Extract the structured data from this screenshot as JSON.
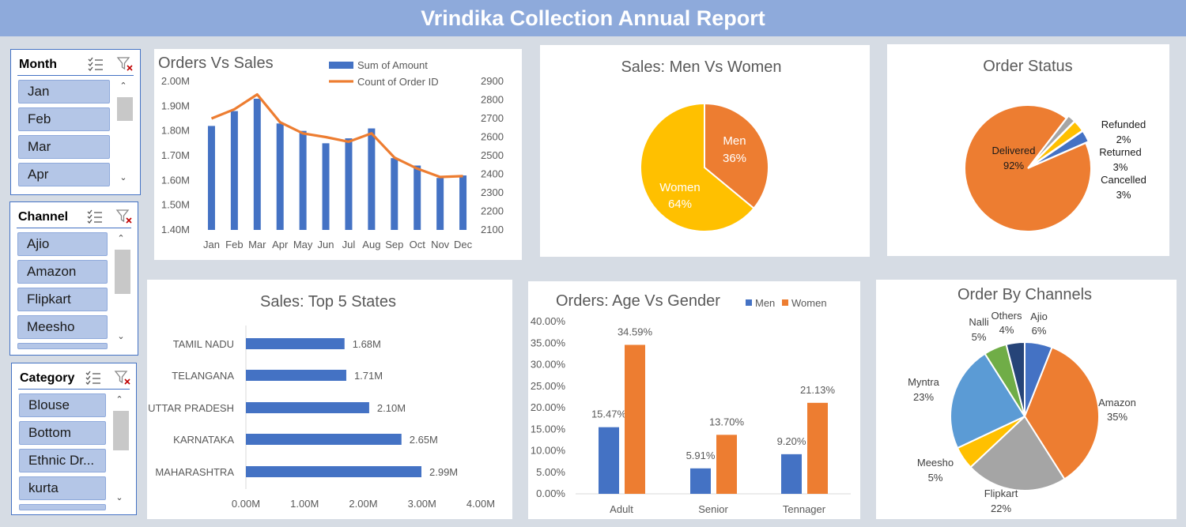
{
  "title": "Vrindika Collection Annual Report",
  "slicers": [
    {
      "name": "Month",
      "items": [
        "Jan",
        "Feb",
        "Mar",
        "Apr"
      ]
    },
    {
      "name": "Channel",
      "items": [
        "Ajio",
        "Amazon",
        "Flipkart",
        "Meesho"
      ]
    },
    {
      "name": "Category",
      "items": [
        "Blouse",
        "Bottom",
        "Ethnic Dr...",
        "kurta"
      ]
    }
  ],
  "chart_data": [
    {
      "id": "orders-vs-sales",
      "type": "bar",
      "title": "Orders Vs Sales",
      "categories": [
        "Jan",
        "Feb",
        "Mar",
        "Apr",
        "May",
        "Jun",
        "Jul",
        "Aug",
        "Sep",
        "Oct",
        "Nov",
        "Dec"
      ],
      "series": [
        {
          "name": "Sum of Amount",
          "type": "bar",
          "axis": "left",
          "color": "#4472c4",
          "values": [
            1.82,
            1.88,
            1.93,
            1.83,
            1.8,
            1.75,
            1.77,
            1.81,
            1.69,
            1.66,
            1.61,
            1.62
          ]
        },
        {
          "name": "Count of Order ID",
          "type": "line",
          "axis": "right",
          "color": "#ed7d31",
          "values": [
            2700,
            2750,
            2830,
            2680,
            2620,
            2600,
            2575,
            2620,
            2490,
            2430,
            2385,
            2390
          ]
        }
      ],
      "y_left": {
        "ylim": [
          1.4,
          2.0
        ],
        "ticks": [
          "1.40M",
          "1.50M",
          "1.60M",
          "1.70M",
          "1.80M",
          "1.90M",
          "2.00M"
        ]
      },
      "y_right": {
        "ylim": [
          2100,
          2900
        ],
        "ticks": [
          "2100",
          "2200",
          "2300",
          "2400",
          "2500",
          "2600",
          "2700",
          "2800",
          "2900"
        ]
      },
      "legend": "top-right"
    },
    {
      "id": "men-vs-women",
      "type": "pie",
      "title": "Sales: Men Vs Women",
      "slices": [
        {
          "name": "Men",
          "value": 36,
          "label": "36%",
          "color": "#ed7d31"
        },
        {
          "name": "Women",
          "value": 64,
          "label": "64%",
          "color": "#ffc000"
        }
      ]
    },
    {
      "id": "order-status",
      "type": "pie",
      "title": "Order Status",
      "slices": [
        {
          "name": "Delivered",
          "value": 92,
          "label": "92%",
          "color": "#ed7d31"
        },
        {
          "name": "Refunded",
          "value": 2,
          "label": "2%",
          "color": "#a5a5a5"
        },
        {
          "name": "Returned",
          "value": 3,
          "label": "3%",
          "color": "#ffc000"
        },
        {
          "name": "Cancelled",
          "value": 3,
          "label": "3%",
          "color": "#4472c4"
        }
      ]
    },
    {
      "id": "top5-states",
      "type": "bar",
      "orientation": "horizontal",
      "title": "Sales: Top 5 States",
      "categories": [
        "TAMIL NADU",
        "TELANGANA",
        "UTTAR PRADESH",
        "KARNATAKA",
        "MAHARASHTRA"
      ],
      "values": [
        1.68,
        1.71,
        2.1,
        2.65,
        2.99
      ],
      "data_labels": [
        "1.68M",
        "1.71M",
        "2.10M",
        "2.65M",
        "2.99M"
      ],
      "color": "#4472c4",
      "xlim": [
        0,
        4
      ],
      "x_ticks": [
        "0.00M",
        "1.00M",
        "2.00M",
        "3.00M",
        "4.00M"
      ]
    },
    {
      "id": "age-vs-gender",
      "type": "bar",
      "title": "Orders: Age Vs Gender",
      "categories": [
        "Adult",
        "Senior",
        "Tennager"
      ],
      "series": [
        {
          "name": "Men",
          "color": "#4472c4",
          "values": [
            15.47,
            5.91,
            9.2
          ],
          "labels": [
            "15.47%",
            "5.91%",
            "9.20%"
          ]
        },
        {
          "name": "Women",
          "color": "#ed7d31",
          "values": [
            34.59,
            13.7,
            21.13
          ],
          "labels": [
            "34.59%",
            "13.70%",
            "21.13%"
          ]
        }
      ],
      "ylim": [
        0,
        40
      ],
      "y_ticks": [
        "0.00%",
        "5.00%",
        "10.00%",
        "15.00%",
        "20.00%",
        "25.00%",
        "30.00%",
        "35.00%",
        "40.00%"
      ],
      "legend": "top-right"
    },
    {
      "id": "order-by-channels",
      "type": "pie",
      "title": "Order By Channels",
      "slices": [
        {
          "name": "Ajio",
          "value": 6,
          "label": "6%",
          "color": "#4472c4"
        },
        {
          "name": "Amazon",
          "value": 35,
          "label": "35%",
          "color": "#ed7d31"
        },
        {
          "name": "Flipkart",
          "value": 22,
          "label": "22%",
          "color": "#a5a5a5"
        },
        {
          "name": "Meesho",
          "value": 5,
          "label": "5%",
          "color": "#ffc000"
        },
        {
          "name": "Myntra",
          "value": 23,
          "label": "23%",
          "color": "#5b9bd5"
        },
        {
          "name": "Nalli",
          "value": 5,
          "label": "5%",
          "color": "#70ad47"
        },
        {
          "name": "Others",
          "value": 4,
          "label": "4%",
          "color": "#264478"
        }
      ]
    }
  ]
}
